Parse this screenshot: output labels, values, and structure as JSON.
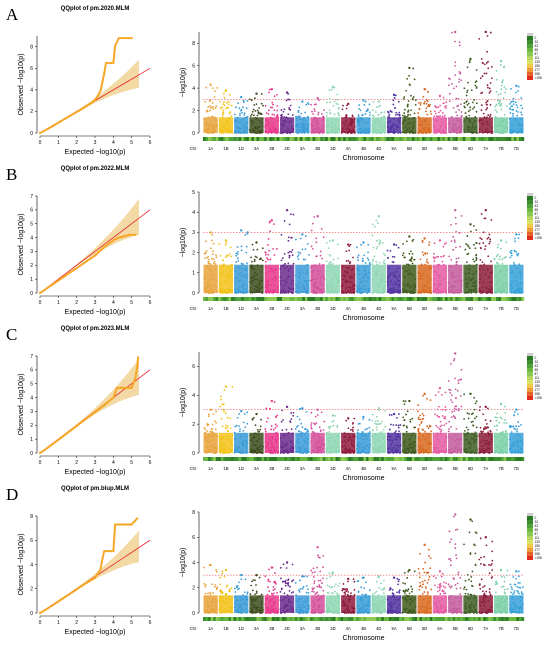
{
  "colors": {
    "qq_points": "#f5a623",
    "qq_line": "#e8232a",
    "qq_band": "#f3d9a4",
    "threshold": "#e8232a",
    "chromosomes": [
      "#e8a33c",
      "#f2c218",
      "#3b9bd6",
      "#3d4d1e",
      "#e8378a",
      "#6b2c8c",
      "#3c9bd8",
      "#d24f9a",
      "#8fd6b4",
      "#8e1b3e",
      "#3a9bd6",
      "#8fd6b4",
      "#5232a0",
      "#3f5a1c",
      "#d8681f",
      "#e45aa2",
      "#c45a9c",
      "#3d5c22",
      "#8c1c3a",
      "#7bcfa8",
      "#35a0d8"
    ],
    "density": [
      "#2b7a24",
      "#3a8e2e",
      "#4fa43a",
      "#6bb845",
      "#8dc954",
      "#b5d95e",
      "#dde064",
      "#f0c94c",
      "#f0993a",
      "#e8632a",
      "#e02b20"
    ]
  },
  "chart_data": [
    {
      "panel": "A",
      "type": "scatter",
      "title": "QQplot of pm.2020.MLM",
      "xlabel": "Expected −log10(p)",
      "ylabel": "Observed −log10(p)",
      "xlim": [
        0,
        6
      ],
      "ylim": [
        0,
        9
      ],
      "xticks": [
        0,
        1,
        2,
        3,
        4,
        5,
        6
      ],
      "yticks": [
        0,
        2,
        4,
        6,
        8
      ],
      "qq_points": [
        [
          0,
          0
        ],
        [
          0.5,
          0.45
        ],
        [
          1,
          0.95
        ],
        [
          1.5,
          1.45
        ],
        [
          2,
          1.95
        ],
        [
          2.5,
          2.45
        ],
        [
          2.9,
          2.9
        ],
        [
          3.1,
          3.3
        ],
        [
          3.3,
          3.9
        ],
        [
          3.4,
          4.7
        ],
        [
          3.5,
          5.5
        ],
        [
          3.6,
          6.5
        ],
        [
          3.8,
          6.5
        ],
        [
          4.0,
          6.5
        ],
        [
          4.1,
          8.1
        ],
        [
          4.3,
          8.8
        ],
        [
          4.6,
          8.8
        ],
        [
          4.8,
          8.8
        ],
        [
          5.0,
          8.8
        ]
      ]
    },
    {
      "panel": "A",
      "type": "scatter",
      "subtype": "manhattan",
      "xlabel": "Chromosome",
      "ylabel": "−log10(p)",
      "ylim": [
        0,
        9
      ],
      "yticks": [
        0,
        2,
        4,
        6,
        8
      ],
      "threshold": 3,
      "categories": [
        "Chr",
        "1A",
        "1B",
        "1D",
        "2A",
        "2B",
        "2D",
        "3A",
        "3B",
        "3D",
        "4A",
        "4B",
        "4D",
        "5A",
        "5B",
        "5D",
        "6A",
        "6B",
        "6D",
        "7A",
        "7B",
        "7D"
      ],
      "peaks": [
        4.3,
        3.8,
        3.2,
        3.5,
        3.9,
        3.6,
        2.8,
        3.1,
        4.1,
        2.6,
        2.9,
        2.8,
        3.4,
        5.8,
        3.9,
        3.3,
        9.0,
        6.6,
        9.0,
        6.4,
        4.2
      ],
      "legend_title": "SNP density",
      "legend": [
        "0",
        "22",
        "43",
        "65",
        "87",
        "111",
        "133",
        "155",
        "177",
        "198",
        ">198"
      ]
    },
    {
      "panel": "B",
      "type": "scatter",
      "title": "QQplot of pm.2022.MLM",
      "xlabel": "Expected −log10(p)",
      "ylabel": "Observed −log10(p)",
      "xlim": [
        0,
        6
      ],
      "ylim": [
        0,
        7
      ],
      "xticks": [
        0,
        1,
        2,
        3,
        4,
        5,
        6
      ],
      "yticks": [
        0,
        1,
        2,
        3,
        4,
        5,
        6,
        7
      ],
      "qq_points": [
        [
          0,
          0
        ],
        [
          0.5,
          0.45
        ],
        [
          1,
          0.9
        ],
        [
          1.5,
          1.35
        ],
        [
          2,
          1.8
        ],
        [
          2.5,
          2.25
        ],
        [
          3,
          2.7
        ],
        [
          3.5,
          3.3
        ],
        [
          4,
          3.8
        ],
        [
          4.3,
          4.0
        ],
        [
          4.6,
          4.1
        ],
        [
          4.9,
          4.2
        ],
        [
          5.2,
          4.2
        ]
      ]
    },
    {
      "panel": "B",
      "type": "scatter",
      "subtype": "manhattan",
      "xlabel": "Chromosome",
      "ylabel": "−log10(p)",
      "ylim": [
        0,
        5
      ],
      "yticks": [
        0,
        1,
        2,
        3,
        4,
        5
      ],
      "threshold": 3,
      "categories": [
        "Chr",
        "1A",
        "1B",
        "1D",
        "2A",
        "2B",
        "2D",
        "3A",
        "3B",
        "3D",
        "4A",
        "4B",
        "4D",
        "5A",
        "5B",
        "5D",
        "6A",
        "6B",
        "6D",
        "7A",
        "7B",
        "7D"
      ],
      "peaks": [
        3.0,
        2.6,
        3.1,
        2.5,
        3.6,
        4.1,
        2.9,
        3.8,
        2.6,
        2.4,
        2.5,
        3.8,
        2.4,
        2.8,
        2.7,
        2.6,
        4.1,
        3.4,
        4.1,
        2.6,
        2.9
      ],
      "legend_title": "SNP density",
      "legend": [
        "0",
        "22",
        "43",
        "65",
        "87",
        "111",
        "133",
        "155",
        "177",
        "198",
        ">198"
      ]
    },
    {
      "panel": "C",
      "type": "scatter",
      "title": "QQplot of pm.2023.MLM",
      "xlabel": "Expected −log10(p)",
      "ylabel": "Observed −log10(p)",
      "xlim": [
        0,
        6
      ],
      "ylim": [
        0,
        7
      ],
      "xticks": [
        0,
        1,
        2,
        3,
        4,
        5,
        6
      ],
      "yticks": [
        0,
        1,
        2,
        3,
        4,
        5,
        6,
        7
      ],
      "qq_points": [
        [
          0,
          0
        ],
        [
          0.5,
          0.45
        ],
        [
          1,
          0.95
        ],
        [
          1.5,
          1.45
        ],
        [
          2,
          1.95
        ],
        [
          2.5,
          2.45
        ],
        [
          3,
          2.95
        ],
        [
          3.5,
          3.45
        ],
        [
          4,
          4.0
        ],
        [
          4.2,
          4.7
        ],
        [
          4.6,
          4.7
        ],
        [
          5.0,
          4.7
        ],
        [
          5.2,
          5.4
        ],
        [
          5.3,
          6.2
        ],
        [
          5.35,
          6.9
        ]
      ]
    },
    {
      "panel": "C",
      "type": "scatter",
      "subtype": "manhattan",
      "xlabel": "Chromosome",
      "ylabel": "−log10(p)",
      "ylim": [
        0,
        7
      ],
      "yticks": [
        0,
        2,
        4,
        6
      ],
      "threshold": 3,
      "categories": [
        "Chr",
        "1A",
        "1B",
        "1D",
        "2A",
        "2B",
        "2D",
        "3A",
        "3B",
        "3D",
        "4A",
        "4B",
        "4D",
        "5A",
        "5B",
        "5D",
        "6A",
        "6B",
        "6D",
        "7A",
        "7B",
        "7D"
      ],
      "peaks": [
        3.0,
        4.6,
        2.9,
        2.7,
        3.6,
        3.2,
        3.1,
        3.0,
        2.6,
        2.4,
        2.5,
        3.1,
        2.7,
        3.6,
        4.1,
        4.5,
        6.9,
        4.1,
        3.2,
        3.4,
        3.0
      ],
      "legend_title": "SNP density",
      "legend": [
        "0",
        "22",
        "43",
        "65",
        "87",
        "111",
        "133",
        "155",
        "177",
        "198",
        ">198"
      ]
    },
    {
      "panel": "D",
      "type": "scatter",
      "title": "QQplot of pm.blup.MLM",
      "xlabel": "Expected −log10(p)",
      "ylabel": "Observed −log10(p)",
      "xlim": [
        0,
        6
      ],
      "ylim": [
        0,
        8
      ],
      "xticks": [
        0,
        1,
        2,
        3,
        4,
        5,
        6
      ],
      "yticks": [
        0,
        2,
        4,
        6,
        8
      ],
      "qq_points": [
        [
          0,
          0
        ],
        [
          0.5,
          0.45
        ],
        [
          1,
          0.95
        ],
        [
          1.5,
          1.45
        ],
        [
          2,
          1.95
        ],
        [
          2.5,
          2.45
        ],
        [
          3,
          2.9
        ],
        [
          3.3,
          3.6
        ],
        [
          3.4,
          4.4
        ],
        [
          3.5,
          5.1
        ],
        [
          3.8,
          5.1
        ],
        [
          4.0,
          5.1
        ],
        [
          4.1,
          7.3
        ],
        [
          4.5,
          7.3
        ],
        [
          5.0,
          7.3
        ],
        [
          5.3,
          7.8
        ]
      ]
    },
    {
      "panel": "D",
      "type": "scatter",
      "subtype": "manhattan",
      "xlabel": "Chromosome",
      "ylabel": "−log10(p)",
      "ylim": [
        0,
        8
      ],
      "yticks": [
        0,
        2,
        4,
        6,
        8
      ],
      "threshold": 3,
      "categories": [
        "Chr",
        "1A",
        "1B",
        "1D",
        "2A",
        "2B",
        "2D",
        "3A",
        "3B",
        "3D",
        "4A",
        "4B",
        "4D",
        "5A",
        "5B",
        "5D",
        "6A",
        "6B",
        "6D",
        "7A",
        "7B",
        "7D"
      ],
      "peaks": [
        3.8,
        3.4,
        3.0,
        3.0,
        3.6,
        4.0,
        2.9,
        5.2,
        3.2,
        2.7,
        2.8,
        2.9,
        2.8,
        3.4,
        5.4,
        3.3,
        7.8,
        7.4,
        6.0,
        3.4,
        3.3
      ],
      "legend_title": "SNP density",
      "legend": [
        "0",
        "22",
        "43",
        "65",
        "87",
        "111",
        "133",
        "155",
        "177",
        "198",
        ">198"
      ]
    }
  ]
}
